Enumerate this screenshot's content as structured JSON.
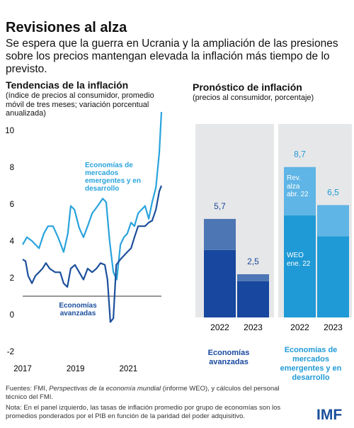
{
  "header": {
    "title": "Revisiones al alza",
    "subtitle": "Se espera que la guerra en Ucrania y la ampliación de las presiones sobre los precios mantengan elevada la inflación más tiempo de lo previsto."
  },
  "chart_data": [
    {
      "type": "line",
      "title": "Tendencias de la inflación",
      "subtitle": "(índice de precios al consumidor, promedio móvil de tres meses; variación porcentual anualizada)",
      "xlim": [
        2017,
        2022.25
      ],
      "xticks": [
        2017,
        2019,
        2021
      ],
      "ylim": [
        -2,
        10.5
      ],
      "yticks": [
        10,
        8,
        6,
        4,
        2,
        0,
        -2
      ],
      "zero_line": true,
      "series": [
        {
          "name": "Economías de mercados emergentes y en desarrollo",
          "color": "#29a3dc",
          "x": [
            2017.0,
            2017.16,
            2017.35,
            2017.62,
            2017.8,
            2017.96,
            2018.15,
            2018.34,
            2018.55,
            2018.71,
            2018.82,
            2018.96,
            2019.14,
            2019.3,
            2019.46,
            2019.63,
            2019.84,
            2020.03,
            2020.16,
            2020.29,
            2020.43,
            2020.56,
            2020.7,
            2020.83,
            2020.96,
            2021.1,
            2021.23,
            2021.37,
            2021.5,
            2021.63,
            2021.77,
            2021.9,
            2022.04,
            2022.17,
            2022.25
          ],
          "values": [
            2.8,
            3.2,
            3.0,
            2.6,
            3.4,
            3.8,
            3.8,
            3.2,
            2.4,
            3.4,
            4.9,
            4.7,
            3.7,
            3.2,
            3.8,
            4.5,
            4.9,
            5.3,
            5.1,
            3.0,
            1.3,
            0.9,
            2.8,
            3.2,
            3.4,
            4.0,
            3.8,
            4.5,
            4.7,
            4.9,
            4.2,
            5.1,
            5.9,
            7.8,
            10.0
          ]
        },
        {
          "name": "Economías avanzadas",
          "color": "#1c4f9c",
          "x": [
            2017.0,
            2017.11,
            2017.21,
            2017.35,
            2017.48,
            2017.62,
            2017.75,
            2017.88,
            2018.02,
            2018.23,
            2018.42,
            2018.55,
            2018.69,
            2018.82,
            2018.98,
            2019.14,
            2019.3,
            2019.46,
            2019.63,
            2019.79,
            2019.95,
            2020.11,
            2020.21,
            2020.32,
            2020.43,
            2020.54,
            2020.7,
            2020.83,
            2020.96,
            2021.1,
            2021.23,
            2021.37,
            2021.5,
            2021.63,
            2021.77,
            2021.9,
            2022.04,
            2022.17,
            2022.25
          ],
          "values": [
            2.0,
            1.9,
            1.1,
            0.7,
            1.1,
            1.3,
            1.5,
            1.8,
            1.5,
            1.3,
            1.3,
            0.7,
            0.5,
            1.5,
            1.7,
            1.3,
            0.9,
            1.5,
            1.3,
            1.5,
            1.8,
            1.7,
            0.9,
            -1.4,
            -1.2,
            1.7,
            2.0,
            2.2,
            2.4,
            2.6,
            3.2,
            3.8,
            3.8,
            3.8,
            4.0,
            4.1,
            4.7,
            5.7,
            6.0
          ]
        }
      ]
    },
    {
      "type": "stacked_bar",
      "title": "Pronóstico de inflación",
      "subtitle": "(precios al consumidor, porcentaje)",
      "categories": [
        "2022",
        "2023",
        "2022",
        "2023"
      ],
      "groups": [
        "Economías avanzadas",
        "Economías de mercados emergentes y en desarrollo"
      ],
      "ylim": [
        0,
        10
      ],
      "series": [
        {
          "name": "WEO ene. 22",
          "values": [
            3.9,
            2.1,
            5.9,
            4.7
          ],
          "colors": [
            "#17479e",
            "#17479e",
            "#1f9ad6",
            "#1f9ad6"
          ]
        },
        {
          "name": "Rev. alza abr. 22",
          "values": [
            1.8,
            0.4,
            2.8,
            1.8
          ],
          "colors": [
            "#4d76b5",
            "#4d76b5",
            "#5fb5e5",
            "#5fb5e5"
          ]
        }
      ],
      "totals": [
        5.7,
        2.5,
        8.7,
        6.5
      ],
      "total_labels": [
        "5,7",
        "2,5",
        "8,7",
        "6,5"
      ]
    }
  ],
  "footer": {
    "source_prefix": "Fuentes: FMI, ",
    "source_italic": "Perspectivas de la economía mundial",
    "source_suffix": " (informe WEO), y cálculos del personal técnico del FMI.",
    "note": "Nota: En el panel izquierdo, las tasas de inflación promedio por grupo de economías son los promedios ponderados por el PIB en función de la paridad del poder adquisitivo.",
    "logo": "IMF"
  }
}
